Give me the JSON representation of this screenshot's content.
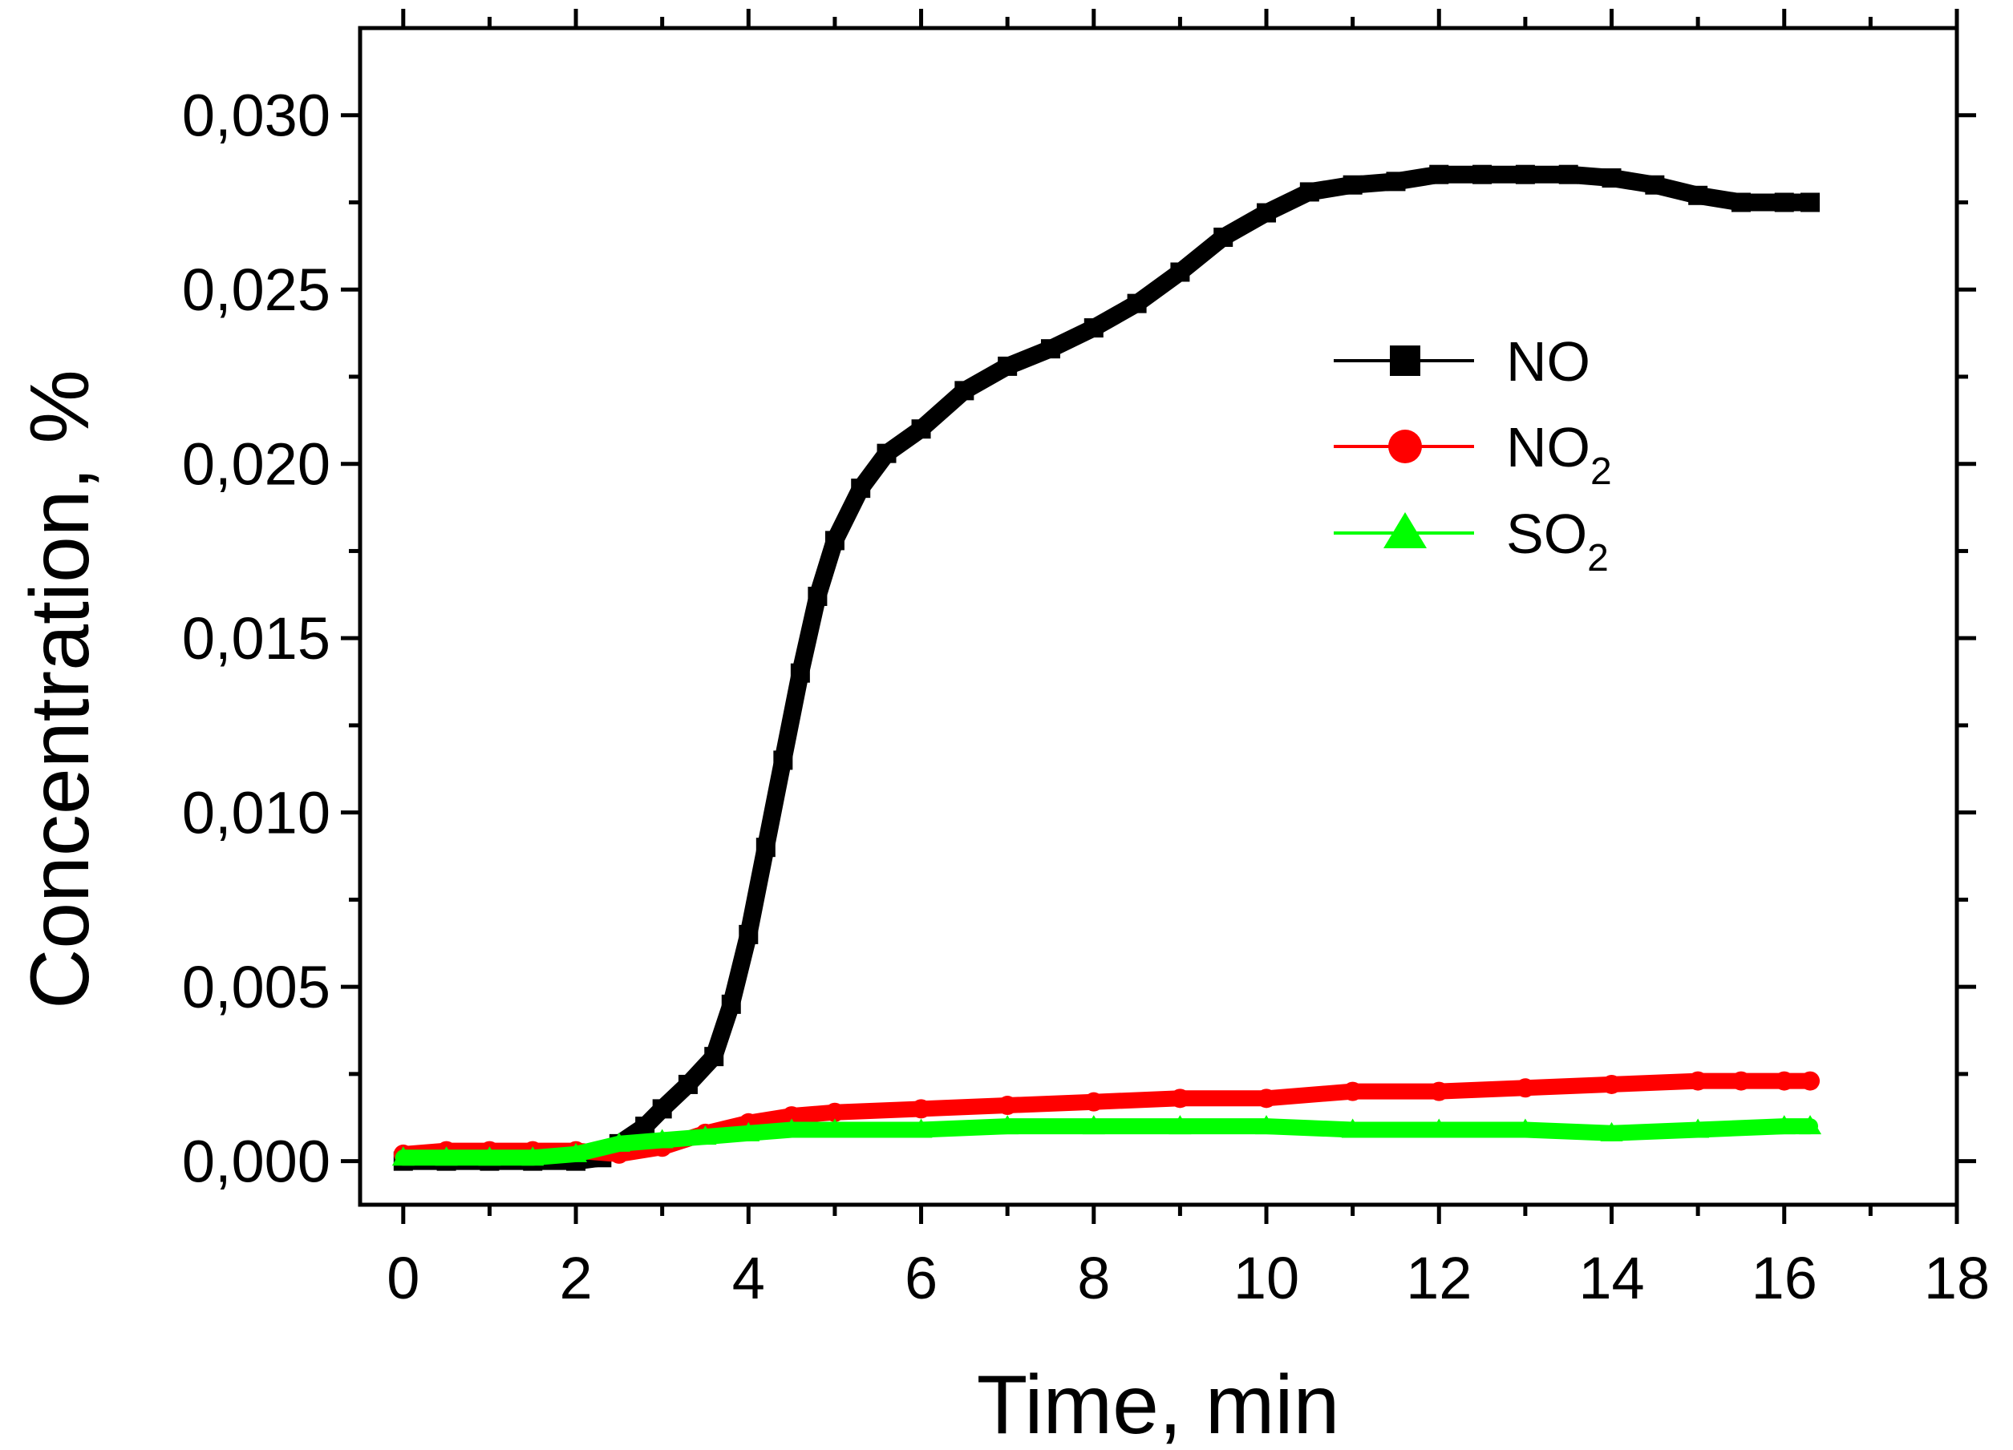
{
  "chart_data": {
    "type": "line",
    "title": "",
    "xlabel": "Time, min",
    "ylabel": "Concentration, %",
    "xlim": [
      -0.5,
      18
    ],
    "ylim": [
      -0.00125,
      0.0325
    ],
    "xticks": [
      0,
      2,
      4,
      6,
      8,
      10,
      12,
      14,
      16,
      18
    ],
    "xtick_labels": [
      "0",
      "2",
      "4",
      "6",
      "8",
      "10",
      "12",
      "14",
      "16",
      "18"
    ],
    "yticks": [
      0.0,
      0.005,
      0.01,
      0.015,
      0.02,
      0.025,
      0.03
    ],
    "ytick_labels": [
      "0,000",
      "0,005",
      "0,010",
      "0,015",
      "0,020",
      "0,025",
      "0,030"
    ],
    "grid": false,
    "legend_position": "upper-right-inside",
    "series": [
      {
        "name": "NO",
        "legend_label": "NO",
        "legend_sub": "",
        "color": "#000000",
        "marker": "square",
        "x": [
          0,
          0.5,
          1,
          1.5,
          2,
          2.3,
          2.5,
          2.8,
          3,
          3.3,
          3.6,
          3.8,
          4,
          4.2,
          4.4,
          4.6,
          4.8,
          5,
          5.3,
          5.6,
          6,
          6.5,
          7,
          7.5,
          8,
          8.5,
          9,
          9.5,
          10,
          10.5,
          11,
          11.5,
          12,
          12.5,
          13,
          13.5,
          14,
          14.5,
          15,
          15.5,
          16,
          16.3
        ],
        "y": [
          0,
          0,
          0,
          0,
          0,
          0.0001,
          0.0005,
          0.001,
          0.0015,
          0.0022,
          0.003,
          0.0045,
          0.0065,
          0.009,
          0.0115,
          0.014,
          0.0162,
          0.0178,
          0.0193,
          0.0203,
          0.021,
          0.0221,
          0.0228,
          0.0233,
          0.0239,
          0.0246,
          0.0255,
          0.0265,
          0.0272,
          0.0278,
          0.028,
          0.0281,
          0.0283,
          0.0283,
          0.0283,
          0.0283,
          0.0282,
          0.028,
          0.0277,
          0.0275,
          0.0275,
          0.0275
        ]
      },
      {
        "name": "NO2",
        "legend_label": "NO",
        "legend_sub": "2",
        "color": "#ff0000",
        "marker": "circle",
        "x": [
          0,
          0.5,
          1,
          1.5,
          2,
          2.5,
          3,
          3.5,
          4,
          4.5,
          5,
          6,
          7,
          8,
          9,
          10,
          11,
          12,
          13,
          14,
          15,
          15.5,
          16,
          16.3
        ],
        "y": [
          0.0002,
          0.0003,
          0.0003,
          0.0003,
          0.0003,
          0.0002,
          0.0004,
          0.0008,
          0.0011,
          0.0013,
          0.0014,
          0.0015,
          0.0016,
          0.0017,
          0.0018,
          0.0018,
          0.002,
          0.002,
          0.0021,
          0.0022,
          0.0023,
          0.0023,
          0.0023,
          0.0023
        ]
      },
      {
        "name": "SO2",
        "legend_label": "SO",
        "legend_sub": "2",
        "color": "#00ff00",
        "marker": "triangle",
        "x": [
          0,
          0.5,
          1,
          1.5,
          2,
          2.5,
          3,
          3.5,
          4,
          4.5,
          5,
          6,
          7,
          8,
          9,
          10,
          11,
          12,
          13,
          14,
          15,
          16,
          16.3
        ],
        "y": [
          0.0001,
          0.0001,
          0.0001,
          0.0001,
          0.0002,
          0.0005,
          0.0006,
          0.0007,
          0.0008,
          0.0009,
          0.0009,
          0.0009,
          0.001,
          0.001,
          0.001,
          0.001,
          0.0009,
          0.0009,
          0.0009,
          0.0008,
          0.0009,
          0.001,
          0.001
        ]
      }
    ]
  }
}
